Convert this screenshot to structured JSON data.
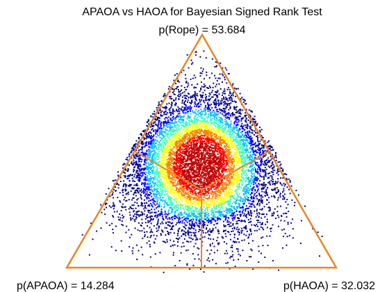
{
  "chart_data": {
    "type": "scatter",
    "subtype": "ternary-density",
    "title": "APAOA vs HAOA for Bayesian Signed Rank Test",
    "probabilities": {
      "rope": {
        "label": "p(Rope) = 53.684",
        "value": 53.684
      },
      "left": {
        "label": "p(APAOA) = 14.284",
        "value": 14.284
      },
      "right": {
        "label": "p(HAOA) = 32.032",
        "value": 32.032
      }
    },
    "vertices": [
      "Rope",
      "APAOA",
      "HAOA"
    ],
    "region_divider_color": "#e8871e",
    "density_colormap": [
      "#00008f",
      "#0000ff",
      "#00bfff",
      "#40ffbf",
      "#ffff00",
      "#ff8000",
      "#ff0000",
      "#c00000"
    ],
    "grid": false,
    "legend": "none"
  }
}
